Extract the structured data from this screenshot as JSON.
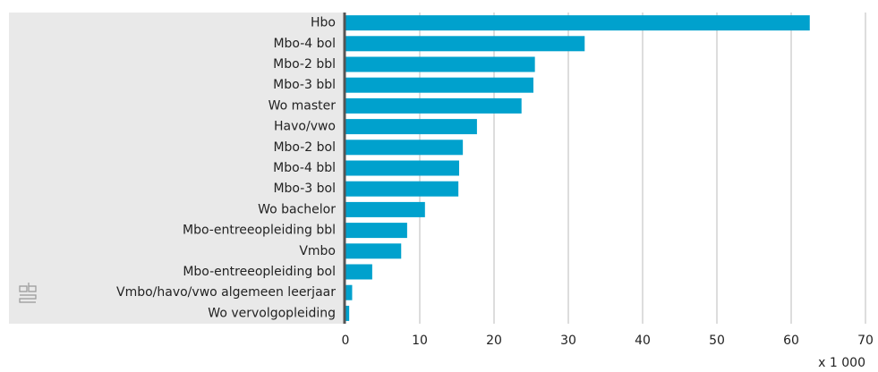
{
  "chart_data": {
    "type": "hbar",
    "categories": [
      "Hbo",
      "Mbo-4 bol",
      "Mbo-2 bbl",
      "Mbo-3 bbl",
      "Wo master",
      "Havo/vwo",
      "Mbo-2 bol",
      "Mbo-4 bbl",
      "Mbo-3 bol",
      "Wo bachelor",
      "Mbo-entreeopleiding bbl",
      "Vmbo",
      "Mbo-entreeopleiding bol",
      "Vmbo/havo/vwo algemeen leerjaar",
      "Wo vervolgopleiding"
    ],
    "values": [
      62.5,
      32.2,
      25.5,
      25.3,
      23.7,
      17.7,
      15.8,
      15.3,
      15.2,
      10.7,
      8.3,
      7.5,
      3.6,
      0.9,
      0.5
    ],
    "color": "#00a1cd",
    "xlim": [
      0,
      70
    ],
    "xticks": [
      0,
      10,
      20,
      30,
      40,
      50,
      60,
      70
    ],
    "x_axis_label": "x 1 000",
    "grid": true
  }
}
